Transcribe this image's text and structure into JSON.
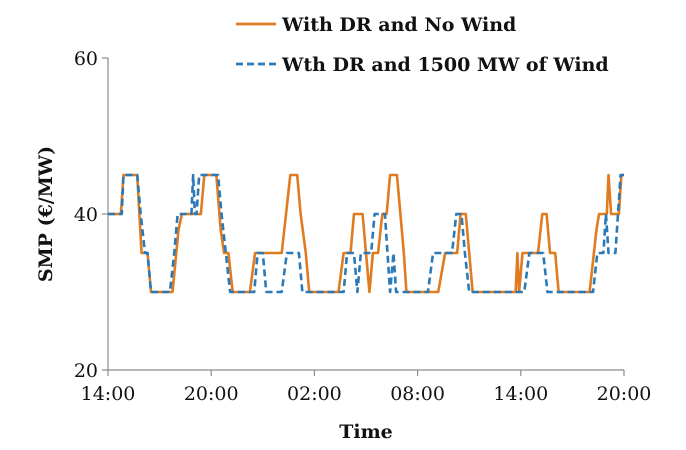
{
  "chart_data": {
    "type": "line",
    "title": "",
    "xlabel": "Time",
    "ylabel": "SMP (€/MW)",
    "x_tick_labels": [
      "14:00",
      "20:00",
      "02:00",
      "08:00",
      "14:00",
      "20:00"
    ],
    "x_tick_hours": [
      0,
      6,
      12,
      18,
      24,
      30
    ],
    "ylim": [
      20,
      60
    ],
    "yticks": [
      20,
      40,
      60
    ],
    "grid": false,
    "legend_placement": "top-right",
    "series": [
      {
        "name": "With DR and No Wind",
        "color": "#e07b20",
        "dash": "solid",
        "points": [
          [
            0.0,
            40
          ],
          [
            0.75,
            40
          ],
          [
            0.9,
            45
          ],
          [
            1.7,
            45
          ],
          [
            1.95,
            35
          ],
          [
            2.3,
            35
          ],
          [
            2.5,
            30
          ],
          [
            3.75,
            30
          ],
          [
            4.1,
            38
          ],
          [
            4.3,
            40
          ],
          [
            5.4,
            40
          ],
          [
            5.6,
            45
          ],
          [
            6.3,
            45
          ],
          [
            6.55,
            38
          ],
          [
            6.75,
            35
          ],
          [
            7.0,
            35
          ],
          [
            7.25,
            30
          ],
          [
            8.25,
            30
          ],
          [
            8.55,
            35
          ],
          [
            10.1,
            35
          ],
          [
            10.45,
            42
          ],
          [
            10.6,
            45
          ],
          [
            11.0,
            45
          ],
          [
            11.2,
            40
          ],
          [
            11.5,
            35
          ],
          [
            11.7,
            30
          ],
          [
            13.4,
            30
          ],
          [
            13.7,
            35
          ],
          [
            14.1,
            35
          ],
          [
            14.3,
            40
          ],
          [
            14.8,
            40
          ],
          [
            15.0,
            35
          ],
          [
            15.2,
            30
          ],
          [
            15.4,
            35
          ],
          [
            15.7,
            35
          ],
          [
            15.95,
            40
          ],
          [
            16.2,
            40
          ],
          [
            16.4,
            45
          ],
          [
            16.8,
            45
          ],
          [
            17.0,
            40
          ],
          [
            17.2,
            35
          ],
          [
            17.35,
            30
          ],
          [
            19.2,
            30
          ],
          [
            19.6,
            35
          ],
          [
            20.3,
            35
          ],
          [
            20.5,
            40
          ],
          [
            20.8,
            40
          ],
          [
            21.0,
            35
          ],
          [
            21.2,
            30
          ],
          [
            23.7,
            30
          ],
          [
            23.8,
            35
          ],
          [
            23.9,
            30
          ],
          [
            24.1,
            35
          ],
          [
            25.0,
            35
          ],
          [
            25.25,
            40
          ],
          [
            25.5,
            40
          ],
          [
            25.7,
            35
          ],
          [
            26.0,
            35
          ],
          [
            26.2,
            30
          ],
          [
            28.0,
            30
          ],
          [
            28.4,
            38
          ],
          [
            28.55,
            40
          ],
          [
            29.0,
            40
          ],
          [
            29.1,
            45
          ],
          [
            29.25,
            40
          ],
          [
            29.7,
            40
          ],
          [
            29.85,
            45
          ],
          [
            30.0,
            45
          ]
        ]
      },
      {
        "name": "Wth DR and 1500 MW of Wind",
        "color": "#2a7ab9",
        "dash": "dashed",
        "points": [
          [
            0.0,
            40
          ],
          [
            0.8,
            40
          ],
          [
            0.9,
            45
          ],
          [
            1.7,
            45
          ],
          [
            1.9,
            40
          ],
          [
            2.15,
            35
          ],
          [
            2.3,
            35
          ],
          [
            2.5,
            30
          ],
          [
            3.6,
            30
          ],
          [
            3.85,
            35
          ],
          [
            4.05,
            40
          ],
          [
            4.85,
            40
          ],
          [
            4.95,
            45
          ],
          [
            5.05,
            40
          ],
          [
            5.15,
            40
          ],
          [
            5.3,
            45
          ],
          [
            6.4,
            45
          ],
          [
            6.6,
            40
          ],
          [
            6.85,
            35
          ],
          [
            7.1,
            30
          ],
          [
            8.5,
            30
          ],
          [
            8.7,
            35
          ],
          [
            9.0,
            35
          ],
          [
            9.2,
            30
          ],
          [
            10.1,
            30
          ],
          [
            10.4,
            35
          ],
          [
            11.1,
            35
          ],
          [
            11.3,
            30
          ],
          [
            13.7,
            30
          ],
          [
            13.9,
            35
          ],
          [
            14.3,
            35
          ],
          [
            14.5,
            30
          ],
          [
            14.7,
            35
          ],
          [
            15.3,
            35
          ],
          [
            15.5,
            40
          ],
          [
            16.1,
            40
          ],
          [
            16.25,
            35
          ],
          [
            16.4,
            30
          ],
          [
            16.6,
            35
          ],
          [
            16.75,
            30
          ],
          [
            18.6,
            30
          ],
          [
            18.9,
            35
          ],
          [
            20.0,
            35
          ],
          [
            20.25,
            40
          ],
          [
            20.55,
            40
          ],
          [
            20.75,
            35
          ],
          [
            21.0,
            30
          ],
          [
            24.2,
            30
          ],
          [
            24.5,
            35
          ],
          [
            25.3,
            35
          ],
          [
            25.55,
            30
          ],
          [
            28.2,
            30
          ],
          [
            28.45,
            35
          ],
          [
            28.8,
            35
          ],
          [
            28.95,
            40
          ],
          [
            29.1,
            35
          ],
          [
            29.5,
            35
          ],
          [
            29.8,
            45
          ],
          [
            30.0,
            45
          ]
        ]
      }
    ]
  }
}
